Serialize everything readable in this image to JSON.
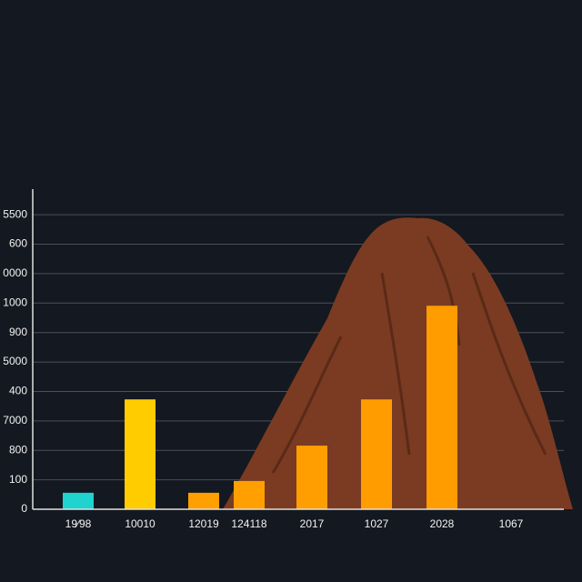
{
  "chart_data": {
    "type": "bar",
    "categories": [
      "19⁄98",
      "10010",
      "12019",
      "124118",
      "2017",
      "1027",
      "2028",
      "1067"
    ],
    "values": [
      0.56,
      3.73,
      0.56,
      0.96,
      2.16,
      3.73,
      6.91,
      null
    ],
    "colors": [
      "#1fd3cf",
      "#ffcc00",
      "#ff9f00",
      "#ffa000",
      "#ff9e00",
      "#ff9d00",
      "#ff9c00",
      "#ff9c00"
    ],
    "ylim": [
      0,
      10.9
    ],
    "yticks": [
      0,
      {
        "value": 1,
        "label": "100"
      },
      {
        "value": 2,
        "label": "800"
      },
      {
        "value": 3,
        "label": "7000"
      },
      {
        "value": 4,
        "label": "400"
      },
      {
        "value": 5,
        "label": "5000"
      },
      {
        "value": 6,
        "label": "900"
      },
      {
        "value": 7,
        "label": "1000"
      },
      {
        "value": 8,
        "label": "0000"
      },
      {
        "value": 9,
        "label": "600"
      },
      {
        "value": 10,
        "label": "5500"
      }
    ],
    "grid": true
  }
}
